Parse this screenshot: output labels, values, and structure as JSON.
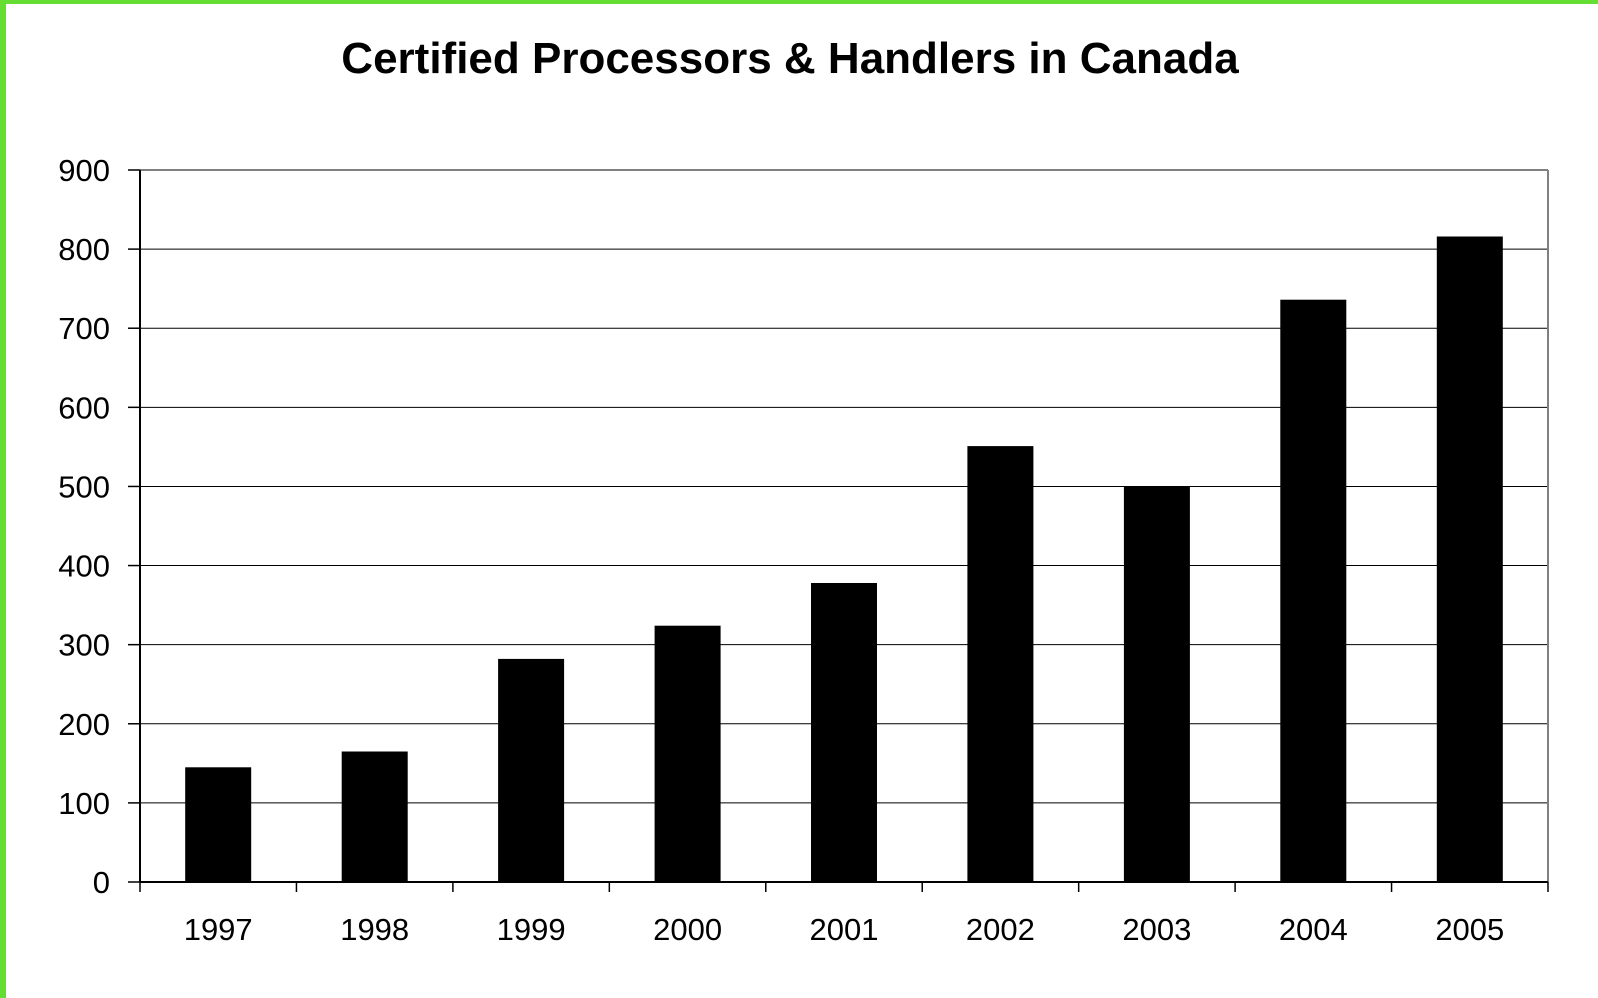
{
  "chart_data": {
    "type": "bar",
    "title": "Certified Processors & Handlers in Canada",
    "categories": [
      "1997",
      "1998",
      "1999",
      "2000",
      "2001",
      "2002",
      "2003",
      "2004",
      "2005"
    ],
    "values": [
      145,
      165,
      282,
      324,
      378,
      551,
      500,
      736,
      816
    ],
    "ylim": [
      0,
      900
    ],
    "yticks": [
      0,
      100,
      200,
      300,
      400,
      500,
      600,
      700,
      800,
      900
    ],
    "grid": true,
    "bar_color": "#000000",
    "border_color": "#66dd33"
  }
}
